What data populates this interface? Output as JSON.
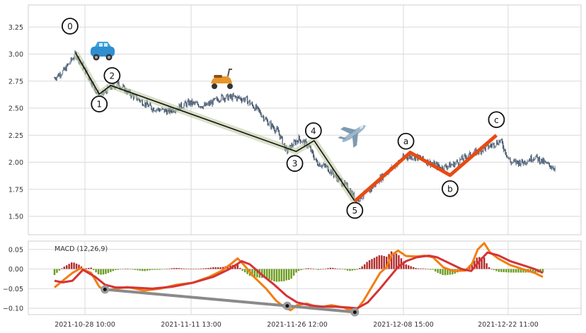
{
  "chart_data": [
    {
      "type": "candlestick",
      "title": "",
      "xlabel": "",
      "ylabel": "",
      "ylim": [
        1.3,
        3.5
      ],
      "yticks": [
        1.5,
        1.75,
        2.0,
        2.25,
        2.5,
        2.75,
        3.0,
        3.25
      ],
      "ytick_labels": [
        "1.50",
        "1.75",
        "2.00",
        "2.25",
        "2.50",
        "2.75",
        "3.00",
        "3.25"
      ],
      "xticks": [
        "2021-10-28 10:00",
        "2021-11-11 13:00",
        "2021-11-26 12:00",
        "2021-12-08 15:00",
        "2021-12-22 11:00"
      ],
      "grid": true,
      "price_path": [
        [
          0,
          2.78
        ],
        [
          12,
          2.85
        ],
        [
          26,
          3.0
        ],
        [
          40,
          2.82
        ],
        [
          55,
          2.6
        ],
        [
          66,
          2.68
        ],
        [
          78,
          2.72
        ],
        [
          95,
          2.62
        ],
        [
          120,
          2.5
        ],
        [
          140,
          2.47
        ],
        [
          165,
          2.55
        ],
        [
          185,
          2.52
        ],
        [
          205,
          2.6
        ],
        [
          222,
          2.6
        ],
        [
          235,
          2.58
        ],
        [
          250,
          2.48
        ],
        [
          262,
          2.37
        ],
        [
          275,
          2.28
        ],
        [
          285,
          2.1
        ],
        [
          300,
          2.22
        ],
        [
          312,
          2.15
        ],
        [
          322,
          2.0
        ],
        [
          335,
          1.95
        ],
        [
          348,
          1.85
        ],
        [
          362,
          1.75
        ],
        [
          370,
          1.65
        ],
        [
          385,
          1.72
        ],
        [
          400,
          1.85
        ],
        [
          415,
          1.95
        ],
        [
          430,
          2.05
        ],
        [
          445,
          2.05
        ],
        [
          460,
          2.0
        ],
        [
          475,
          1.95
        ],
        [
          490,
          1.98
        ],
        [
          505,
          2.05
        ],
        [
          520,
          2.1
        ],
        [
          535,
          2.15
        ],
        [
          548,
          2.2
        ],
        [
          560,
          2.0
        ],
        [
          575,
          2.0
        ],
        [
          590,
          2.05
        ],
        [
          605,
          1.98
        ],
        [
          615,
          1.95
        ]
      ],
      "waves": {
        "impulse": {
          "labels": [
            "0",
            "1",
            "2",
            "3",
            "4",
            "5"
          ],
          "points": [
            [
              26,
              3.01
            ],
            [
              55,
              2.63
            ],
            [
              69,
              2.71
            ],
            [
              297,
              2.1
            ],
            [
              319,
              2.2
            ],
            [
              369,
              1.64
            ]
          ]
        },
        "correction": {
          "labels": [
            "a",
            "b",
            "c"
          ],
          "points": [
            [
              369,
              1.64
            ],
            [
              437,
              2.09
            ],
            [
              486,
              1.88
            ],
            [
              543,
              2.25
            ]
          ]
        }
      },
      "icons": [
        "car-icon",
        "scooter-icon",
        "airplane-icon"
      ]
    },
    {
      "type": "macd",
      "legend": "MACD (12,26,9)",
      "ylim": [
        -0.115,
        0.075
      ],
      "yticks": [
        -0.1,
        -0.05,
        0.0,
        0.05
      ],
      "ytick_labels": [
        "−0.10",
        "−0.05",
        "0.00",
        "0.05"
      ],
      "series": [
        {
          "name": "macd",
          "color": "#f07f13",
          "points": [
            [
              0,
              -0.047
            ],
            [
              10,
              -0.03
            ],
            [
              22,
              -0.01
            ],
            [
              32,
              0.002
            ],
            [
              45,
              -0.01
            ],
            [
              55,
              -0.045
            ],
            [
              62,
              -0.055
            ],
            [
              75,
              -0.05
            ],
            [
              90,
              -0.046
            ],
            [
              110,
              -0.055
            ],
            [
              130,
              -0.05
            ],
            [
              150,
              -0.04
            ],
            [
              170,
              -0.035
            ],
            [
              190,
              -0.02
            ],
            [
              205,
              -0.005
            ],
            [
              218,
              0.015
            ],
            [
              225,
              0.027
            ],
            [
              233,
              0.01
            ],
            [
              245,
              -0.02
            ],
            [
              260,
              -0.05
            ],
            [
              272,
              -0.08
            ],
            [
              282,
              -0.097
            ],
            [
              290,
              -0.105
            ],
            [
              298,
              -0.092
            ],
            [
              310,
              -0.088
            ],
            [
              325,
              -0.098
            ],
            [
              340,
              -0.092
            ],
            [
              355,
              -0.098
            ],
            [
              362,
              -0.104
            ],
            [
              372,
              -0.102
            ],
            [
              380,
              -0.08
            ],
            [
              390,
              -0.045
            ],
            [
              400,
              -0.01
            ],
            [
              408,
              0.005
            ],
            [
              414,
              0.035
            ],
            [
              422,
              0.047
            ],
            [
              432,
              0.033
            ],
            [
              445,
              0.032
            ],
            [
              455,
              0.034
            ],
            [
              465,
              0.03
            ],
            [
              478,
              0.004
            ],
            [
              490,
              -0.005
            ],
            [
              505,
              -0.004
            ],
            [
              513,
              0.013
            ],
            [
              520,
              0.05
            ],
            [
              528,
              0.066
            ],
            [
              535,
              0.043
            ],
            [
              545,
              0.027
            ],
            [
              560,
              0.01
            ],
            [
              575,
              0.0
            ],
            [
              590,
              -0.01
            ],
            [
              600,
              -0.02
            ]
          ]
        },
        {
          "name": "signal",
          "color": "#d63336",
          "points": [
            [
              0,
              -0.03
            ],
            [
              10,
              -0.034
            ],
            [
              22,
              -0.03
            ],
            [
              35,
              -0.002
            ],
            [
              50,
              -0.02
            ],
            [
              62,
              -0.04
            ],
            [
              75,
              -0.047
            ],
            [
              95,
              -0.047
            ],
            [
              120,
              -0.05
            ],
            [
              145,
              -0.045
            ],
            [
              170,
              -0.035
            ],
            [
              195,
              -0.02
            ],
            [
              215,
              0.0
            ],
            [
              230,
              0.02
            ],
            [
              240,
              0.012
            ],
            [
              255,
              -0.015
            ],
            [
              270,
              -0.04
            ],
            [
              285,
              -0.068
            ],
            [
              298,
              -0.085
            ],
            [
              315,
              -0.093
            ],
            [
              330,
              -0.096
            ],
            [
              345,
              -0.096
            ],
            [
              360,
              -0.098
            ],
            [
              372,
              -0.1
            ],
            [
              385,
              -0.085
            ],
            [
              400,
              -0.05
            ],
            [
              412,
              -0.02
            ],
            [
              422,
              0.005
            ],
            [
              432,
              0.02
            ],
            [
              445,
              0.03
            ],
            [
              460,
              0.034
            ],
            [
              470,
              0.03
            ],
            [
              485,
              0.015
            ],
            [
              500,
              0.0
            ],
            [
              512,
              -0.005
            ],
            [
              522,
              0.02
            ],
            [
              532,
              0.042
            ],
            [
              545,
              0.035
            ],
            [
              560,
              0.02
            ],
            [
              575,
              0.01
            ],
            [
              590,
              0.0
            ],
            [
              600,
              -0.01
            ]
          ]
        }
      ],
      "divergence_points": [
        [
          62,
          -0.052
        ],
        [
          286,
          -0.094
        ],
        [
          369,
          -0.11
        ]
      ],
      "histogram_colors": {
        "positive": "#b22a2a",
        "negative": "#6b9b1f"
      }
    }
  ]
}
